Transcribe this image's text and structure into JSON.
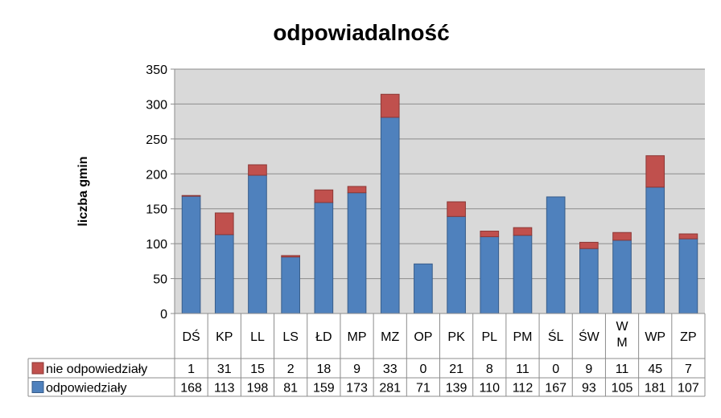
{
  "chart_data": {
    "type": "bar",
    "stacked": true,
    "title": "odpowiadalność",
    "xlabel": "",
    "ylabel": "liczba gmin",
    "ylim": [
      0,
      350
    ],
    "yticks": [
      "0",
      "50",
      "100",
      "150",
      "200",
      "250",
      "300",
      "350"
    ],
    "grid": true,
    "categories": [
      "DŚ",
      "KP",
      "LL",
      "LS",
      "ŁD",
      "MP",
      "MZ",
      "OP",
      "PK",
      "PL",
      "PM",
      "ŚL",
      "ŚW",
      "W\nM",
      "WP",
      "ZP"
    ],
    "category_lines": [
      [
        "DŚ"
      ],
      [
        "KP"
      ],
      [
        "LL"
      ],
      [
        "LS"
      ],
      [
        "ŁD"
      ],
      [
        "MP"
      ],
      [
        "MZ"
      ],
      [
        "OP"
      ],
      [
        "PK"
      ],
      [
        "PL"
      ],
      [
        "PM"
      ],
      [
        "ŚL"
      ],
      [
        "ŚW"
      ],
      [
        "W",
        "M"
      ],
      [
        "WP"
      ],
      [
        "ZP"
      ]
    ],
    "series": [
      {
        "name": "odpowiedziały",
        "color": "#4f81bd",
        "edge": "#385d8a",
        "values": [
          168,
          113,
          198,
          81,
          159,
          173,
          281,
          71,
          139,
          110,
          112,
          167,
          93,
          105,
          181,
          107
        ],
        "labels": [
          "168",
          "113",
          "198",
          "81",
          "159",
          "173",
          "281",
          "71",
          "139",
          "110",
          "112",
          "167",
          "93",
          "105",
          "181",
          "107"
        ]
      },
      {
        "name": "nie odpowiedziały",
        "color": "#c0504d",
        "edge": "#8c3836",
        "values": [
          1,
          31,
          15,
          2,
          18,
          9,
          33,
          0,
          21,
          8,
          11,
          0,
          9,
          11,
          45,
          7
        ],
        "labels": [
          "1",
          "31",
          "15",
          "2",
          "18",
          "9",
          "33",
          "0",
          "21",
          "8",
          "11",
          "0",
          "9",
          "11",
          "45",
          "7"
        ]
      }
    ],
    "table_row_order": [
      1,
      0
    ],
    "colors": {
      "plot_background": "#d9d9d9",
      "gridline": "#8c8c8c",
      "table_border": "#8c8c8c"
    }
  }
}
